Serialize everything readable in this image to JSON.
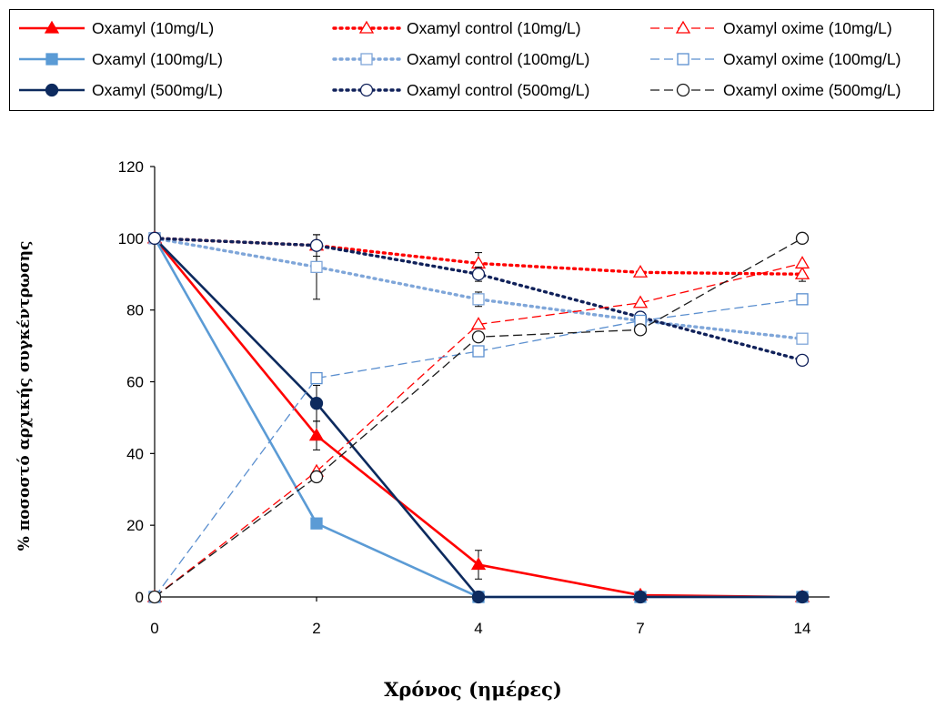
{
  "chart_data": {
    "type": "line",
    "xlabel": "Χρόνος (ημέρες)",
    "ylabel": "% ποσοστό αρχικής συγκέντρωσης",
    "categories": [
      "0",
      "2",
      "4",
      "7",
      "14"
    ],
    "ylim": [
      0,
      120
    ],
    "yticks": [
      "0",
      "20",
      "40",
      "60",
      "80",
      "100",
      "120"
    ],
    "grid": false,
    "legend_position": "top",
    "series": [
      {
        "name": "Oxamyl (10mg/L)",
        "values": [
          100,
          45,
          9,
          0.5,
          0
        ],
        "err": [
          0,
          4,
          4,
          0,
          0
        ],
        "color": "#ff0000",
        "line": "solid",
        "marker": "triangle",
        "fill": true
      },
      {
        "name": "Oxamyl (100mg/L)",
        "values": [
          100,
          20.5,
          0,
          0,
          0
        ],
        "err": [
          0,
          0,
          0,
          0,
          0
        ],
        "color": "#5b9bd5",
        "line": "solid",
        "marker": "square",
        "fill": true
      },
      {
        "name": "Oxamyl (500mg/L)",
        "values": [
          100,
          54,
          0,
          0,
          0
        ],
        "err": [
          0,
          5,
          0,
          0,
          0
        ],
        "color": "#0d2a5e",
        "line": "solid",
        "marker": "circle",
        "fill": true
      },
      {
        "name": "Oxamyl control (10mg/L)",
        "values": [
          100,
          98,
          93,
          90.5,
          90
        ],
        "err": [
          0,
          3,
          3,
          0,
          2
        ],
        "color": "#ff0000",
        "line": "dotted",
        "marker": "triangle",
        "fill": false
      },
      {
        "name": "Oxamyl control (100mg/L)",
        "values": [
          100,
          92,
          83,
          77,
          72
        ],
        "err": [
          0,
          9,
          2,
          0,
          0
        ],
        "color": "#7fa6d9",
        "line": "dotted",
        "marker": "square",
        "fill": false
      },
      {
        "name": "Oxamyl control (500mg/L)",
        "values": [
          100,
          98,
          90,
          78,
          66
        ],
        "err": [
          0,
          0,
          2,
          0,
          1
        ],
        "color": "#10215a",
        "line": "dotted",
        "marker": "circle",
        "fill": false
      },
      {
        "name": "Oxamyl oxime (10mg/L)",
        "values": [
          0,
          35,
          76,
          82,
          93
        ],
        "err": [
          0,
          0,
          0,
          0,
          0
        ],
        "color": "#ff0000",
        "line": "dashed",
        "marker": "triangle",
        "fill": false
      },
      {
        "name": "Oxamyl oxime (100mg/L)",
        "values": [
          0,
          61,
          68.5,
          77,
          83
        ],
        "err": [
          0,
          0,
          0,
          0,
          0
        ],
        "color": "#5b8fcf",
        "line": "dashed",
        "marker": "square",
        "fill": false
      },
      {
        "name": "Oxamyl oxime (500mg/L)",
        "values": [
          0,
          33.5,
          72.5,
          74.5,
          100
        ],
        "err": [
          0,
          0,
          0,
          0,
          0
        ],
        "color": "#1a1a1a",
        "line": "dashed",
        "marker": "circle",
        "fill": false
      }
    ]
  }
}
